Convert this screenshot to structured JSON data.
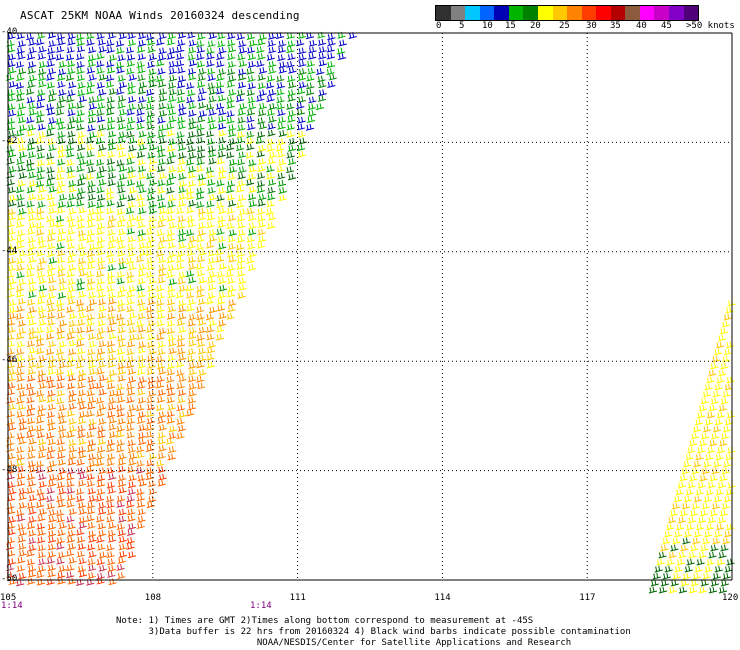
{
  "title": "ASCAT 25KM NOAA Winds 20160324 descending",
  "legend": {
    "colors": [
      "#303030",
      "#808080",
      "#00c8ff",
      "#0064ff",
      "#0000b4",
      "#00b400",
      "#008200",
      "#ffff00",
      "#ffc800",
      "#ff8200",
      "#ff3c00",
      "#ff0000",
      "#b40000",
      "#8c5a3c",
      "#ff00ff",
      "#c800c8",
      "#8200c8",
      "#500078"
    ],
    "labels": [
      "0",
      "5",
      "10",
      "15",
      "20",
      "25",
      "30",
      "35",
      "40",
      "45",
      ">50 knots"
    ]
  },
  "lat_labels": [
    "-40",
    "-42",
    "-44",
    "-46",
    "-48",
    "-50"
  ],
  "lon_labels": [
    "105",
    "108",
    "111",
    "114",
    "117",
    "120"
  ],
  "time_labels": [
    "1:14",
    "1:14"
  ],
  "notes": [
    "Note: 1) Times are GMT 2)Times along bottom correspond to measurement at -45S",
    "      3)Data buffer is 22 hrs from 20160324 4) Black wind barbs indicate possible contamination",
    "                          NOAA/NESDIS/Center for Satellite Applications and Research"
  ],
  "map": {
    "lon_range": [
      105,
      120
    ],
    "lat_range": [
      -50,
      -40
    ]
  }
}
